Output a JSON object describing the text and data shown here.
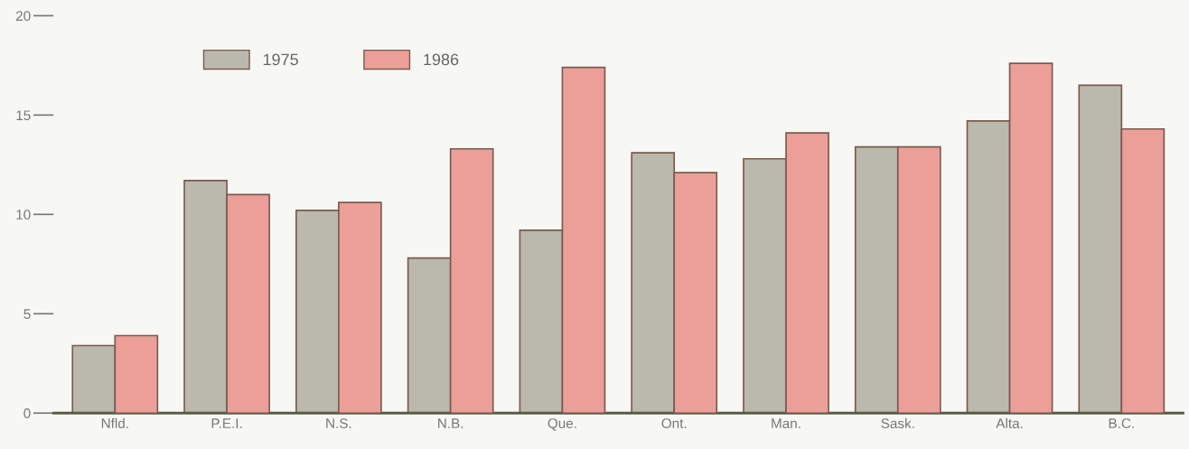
{
  "chart_data": {
    "type": "bar",
    "categories": [
      "Nfld.",
      "P.E.I.",
      "N.S.",
      "N.B.",
      "Que.",
      "Ont.",
      "Man.",
      "Sask.",
      "Alta.",
      "B.C."
    ],
    "series": [
      {
        "name": "1975",
        "color": "#bbb9ad",
        "values": [
          3.4,
          11.7,
          10.2,
          7.8,
          9.2,
          13.1,
          12.8,
          13.4,
          14.7,
          16.5
        ]
      },
      {
        "name": "1986",
        "color": "#ec9f98",
        "values": [
          3.9,
          11.0,
          10.6,
          13.3,
          17.4,
          12.1,
          14.1,
          13.4,
          17.6,
          14.3
        ]
      }
    ],
    "ylim": [
      0,
      20
    ],
    "yticks": [
      0,
      5,
      10,
      15,
      20
    ],
    "grid": false,
    "legend": "top left"
  }
}
